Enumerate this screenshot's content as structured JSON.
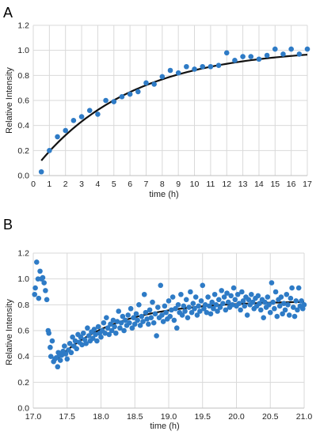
{
  "chart_data": [
    {
      "type": "scatter",
      "panel_label": "A",
      "xlabel": "time  (h)",
      "ylabel": "Relative Intensity",
      "xlim": [
        0,
        17
      ],
      "ylim": [
        0.0,
        1.2
      ],
      "x_ticks": [
        0,
        1,
        2,
        3,
        4,
        5,
        6,
        7,
        8,
        9,
        10,
        11,
        12,
        13,
        14,
        15,
        16,
        17
      ],
      "y_ticks": [
        0.0,
        0.2,
        0.4,
        0.6,
        0.8,
        1.0,
        1.2
      ],
      "x_tick_labels": [
        "0",
        "1",
        "2",
        "3",
        "4",
        "5",
        "6",
        "7",
        "8",
        "9",
        "10",
        "11",
        "12",
        "13",
        "14",
        "15",
        "16",
        "17"
      ],
      "y_tick_labels": [
        "0.0",
        "0.2",
        "0.4",
        "0.6",
        "0.8",
        "1.0",
        "1.2"
      ],
      "grid": true,
      "point_color": "#2e7bc6",
      "fit_color": "#111111",
      "points": [
        [
          0.5,
          0.03
        ],
        [
          1.0,
          0.2
        ],
        [
          1.5,
          0.31
        ],
        [
          2.0,
          0.36
        ],
        [
          2.5,
          0.44
        ],
        [
          3.0,
          0.47
        ],
        [
          3.5,
          0.52
        ],
        [
          4.0,
          0.49
        ],
        [
          4.5,
          0.6
        ],
        [
          5.0,
          0.59
        ],
        [
          5.5,
          0.63
        ],
        [
          6.0,
          0.65
        ],
        [
          6.5,
          0.67
        ],
        [
          7.0,
          0.74
        ],
        [
          7.5,
          0.73
        ],
        [
          8.0,
          0.79
        ],
        [
          8.5,
          0.84
        ],
        [
          9.0,
          0.82
        ],
        [
          9.5,
          0.87
        ],
        [
          10.0,
          0.85
        ],
        [
          10.5,
          0.87
        ],
        [
          11.0,
          0.87
        ],
        [
          11.5,
          0.88
        ],
        [
          12.0,
          0.98
        ],
        [
          12.5,
          0.92
        ],
        [
          13.0,
          0.95
        ],
        [
          13.5,
          0.95
        ],
        [
          14.0,
          0.93
        ],
        [
          14.5,
          0.96
        ],
        [
          15.0,
          1.01
        ],
        [
          15.5,
          0.97
        ],
        [
          16.0,
          1.01
        ],
        [
          16.5,
          0.97
        ],
        [
          17.0,
          1.01
        ]
      ],
      "fit": {
        "model": "exponential_rise",
        "t0": 0.5,
        "y0": 0.12,
        "ymax": 1.02,
        "k": 0.17
      }
    },
    {
      "type": "scatter",
      "panel_label": "B",
      "xlabel": "time (h)",
      "ylabel": "Relative Intensity",
      "xlim": [
        17.0,
        21.0
      ],
      "ylim": [
        0.0,
        1.2
      ],
      "x_ticks": [
        17.0,
        17.5,
        18.0,
        18.5,
        19.0,
        19.5,
        20.0,
        20.5,
        21.0
      ],
      "y_ticks": [
        0.0,
        0.2,
        0.4,
        0.6,
        0.8,
        1.0,
        1.2
      ],
      "x_tick_labels": [
        "17.0",
        "17.5",
        "18.0",
        "18.5",
        "19.0",
        "19.5",
        "20.0",
        "20.5",
        "21.0"
      ],
      "y_tick_labels": [
        "0.0",
        "0.2",
        "0.4",
        "0.6",
        "0.8",
        "1.0",
        "1.2"
      ],
      "grid": true,
      "point_color": "#2e7bc6",
      "fit_color": "#111111",
      "points": [
        [
          17.02,
          0.88
        ],
        [
          17.03,
          0.93
        ],
        [
          17.05,
          1.13
        ],
        [
          17.07,
          1.0
        ],
        [
          17.08,
          0.85
        ],
        [
          17.1,
          1.06
        ],
        [
          17.12,
          1.0
        ],
        [
          17.14,
          1.01
        ],
        [
          17.16,
          0.97
        ],
        [
          17.18,
          0.91
        ],
        [
          17.2,
          0.84
        ],
        [
          17.22,
          0.6
        ],
        [
          17.23,
          0.58
        ],
        [
          17.25,
          0.47
        ],
        [
          17.26,
          0.4
        ],
        [
          17.28,
          0.52
        ],
        [
          17.3,
          0.36
        ],
        [
          17.32,
          0.38
        ],
        [
          17.34,
          0.39
        ],
        [
          17.36,
          0.32
        ],
        [
          17.37,
          0.43
        ],
        [
          17.39,
          0.41
        ],
        [
          17.4,
          0.37
        ],
        [
          17.42,
          0.41
        ],
        [
          17.44,
          0.44
        ],
        [
          17.46,
          0.48
        ],
        [
          17.48,
          0.42
        ],
        [
          17.5,
          0.38
        ],
        [
          17.52,
          0.45
        ],
        [
          17.54,
          0.5
        ],
        [
          17.56,
          0.43
        ],
        [
          17.58,
          0.55
        ],
        [
          17.6,
          0.48
        ],
        [
          17.62,
          0.52
        ],
        [
          17.64,
          0.46
        ],
        [
          17.66,
          0.57
        ],
        [
          17.68,
          0.51
        ],
        [
          17.7,
          0.55
        ],
        [
          17.72,
          0.49
        ],
        [
          17.74,
          0.58
        ],
        [
          17.76,
          0.53
        ],
        [
          17.78,
          0.5
        ],
        [
          17.8,
          0.62
        ],
        [
          17.82,
          0.56
        ],
        [
          17.84,
          0.52
        ],
        [
          17.86,
          0.59
        ],
        [
          17.88,
          0.54
        ],
        [
          17.9,
          0.61
        ],
        [
          17.92,
          0.57
        ],
        [
          17.94,
          0.52
        ],
        [
          17.96,
          0.63
        ],
        [
          17.98,
          0.58
        ],
        [
          18.0,
          0.55
        ],
        [
          18.02,
          0.6
        ],
        [
          18.04,
          0.66
        ],
        [
          18.06,
          0.58
        ],
        [
          18.08,
          0.7
        ],
        [
          18.1,
          0.62
        ],
        [
          18.12,
          0.57
        ],
        [
          18.14,
          0.65
        ],
        [
          18.16,
          0.6
        ],
        [
          18.18,
          0.68
        ],
        [
          18.2,
          0.63
        ],
        [
          18.22,
          0.58
        ],
        [
          18.24,
          0.67
        ],
        [
          18.26,
          0.75
        ],
        [
          18.28,
          0.62
        ],
        [
          18.3,
          0.66
        ],
        [
          18.32,
          0.71
        ],
        [
          18.34,
          0.6
        ],
        [
          18.36,
          0.68
        ],
        [
          18.38,
          0.64
        ],
        [
          18.4,
          0.72
        ],
        [
          18.42,
          0.66
        ],
        [
          18.44,
          0.77
        ],
        [
          18.46,
          0.62
        ],
        [
          18.48,
          0.7
        ],
        [
          18.5,
          0.65
        ],
        [
          18.52,
          0.73
        ],
        [
          18.54,
          0.68
        ],
        [
          18.56,
          0.8
        ],
        [
          18.58,
          0.64
        ],
        [
          18.6,
          0.71
        ],
        [
          18.62,
          0.67
        ],
        [
          18.64,
          0.88
        ],
        [
          18.66,
          0.74
        ],
        [
          18.68,
          0.69
        ],
        [
          18.7,
          0.65
        ],
        [
          18.72,
          0.76
        ],
        [
          18.74,
          0.7
        ],
        [
          18.76,
          0.82
        ],
        [
          18.78,
          0.66
        ],
        [
          18.8,
          0.73
        ],
        [
          18.82,
          0.56
        ],
        [
          18.84,
          0.78
        ],
        [
          18.86,
          0.7
        ],
        [
          18.88,
          0.95
        ],
        [
          18.9,
          0.72
        ],
        [
          18.92,
          0.67
        ],
        [
          18.94,
          0.79
        ],
        [
          18.96,
          0.74
        ],
        [
          18.98,
          0.69
        ],
        [
          19.0,
          0.83
        ],
        [
          19.02,
          0.71
        ],
        [
          19.04,
          0.76
        ],
        [
          19.06,
          0.86
        ],
        [
          19.08,
          0.68
        ],
        [
          19.1,
          0.77
        ],
        [
          19.12,
          0.62
        ],
        [
          19.14,
          0.8
        ],
        [
          19.16,
          0.74
        ],
        [
          19.18,
          0.88
        ],
        [
          19.2,
          0.72
        ],
        [
          19.22,
          0.79
        ],
        [
          19.24,
          0.75
        ],
        [
          19.26,
          0.84
        ],
        [
          19.28,
          0.7
        ],
        [
          19.3,
          0.78
        ],
        [
          19.32,
          0.9
        ],
        [
          19.34,
          0.74
        ],
        [
          19.36,
          0.81
        ],
        [
          19.38,
          0.77
        ],
        [
          19.4,
          0.86
        ],
        [
          19.42,
          0.72
        ],
        [
          19.44,
          0.79
        ],
        [
          19.46,
          0.75
        ],
        [
          19.48,
          0.83
        ],
        [
          19.5,
          0.95
        ],
        [
          19.52,
          0.77
        ],
        [
          19.54,
          0.8
        ],
        [
          19.56,
          0.74
        ],
        [
          19.58,
          0.86
        ],
        [
          19.6,
          0.79
        ],
        [
          19.62,
          0.73
        ],
        [
          19.64,
          0.82
        ],
        [
          19.66,
          0.77
        ],
        [
          19.68,
          0.88
        ],
        [
          19.7,
          0.8
        ],
        [
          19.72,
          0.75
        ],
        [
          19.74,
          0.84
        ],
        [
          19.76,
          0.78
        ],
        [
          19.78,
          0.91
        ],
        [
          19.8,
          0.81
        ],
        [
          19.82,
          0.86
        ],
        [
          19.84,
          0.76
        ],
        [
          19.86,
          0.89
        ],
        [
          19.88,
          0.82
        ],
        [
          19.9,
          0.78
        ],
        [
          19.92,
          0.87
        ],
        [
          19.94,
          0.8
        ],
        [
          19.96,
          0.93
        ],
        [
          19.98,
          0.84
        ],
        [
          20.0,
          0.79
        ],
        [
          20.02,
          0.88
        ],
        [
          20.04,
          0.81
        ],
        [
          20.06,
          0.76
        ],
        [
          20.08,
          0.9
        ],
        [
          20.1,
          0.83
        ],
        [
          20.12,
          0.79
        ],
        [
          20.14,
          0.86
        ],
        [
          20.16,
          0.72
        ],
        [
          20.18,
          0.84
        ],
        [
          20.2,
          0.8
        ],
        [
          20.22,
          0.88
        ],
        [
          20.24,
          0.82
        ],
        [
          20.26,
          0.77
        ],
        [
          20.28,
          0.85
        ],
        [
          20.3,
          0.79
        ],
        [
          20.32,
          0.87
        ],
        [
          20.34,
          0.81
        ],
        [
          20.36,
          0.76
        ],
        [
          20.38,
          0.84
        ],
        [
          20.4,
          0.7
        ],
        [
          20.42,
          0.82
        ],
        [
          20.44,
          0.78
        ],
        [
          20.46,
          0.86
        ],
        [
          20.48,
          0.8
        ],
        [
          20.5,
          0.74
        ],
        [
          20.52,
          0.97
        ],
        [
          20.54,
          0.82
        ],
        [
          20.56,
          0.77
        ],
        [
          20.58,
          0.9
        ],
        [
          20.6,
          0.71
        ],
        [
          20.62,
          0.84
        ],
        [
          20.64,
          0.79
        ],
        [
          20.66,
          0.86
        ],
        [
          20.68,
          0.73
        ],
        [
          20.7,
          0.81
        ],
        [
          20.72,
          0.76
        ],
        [
          20.74,
          0.88
        ],
        [
          20.76,
          0.8
        ],
        [
          20.78,
          0.72
        ],
        [
          20.8,
          0.85
        ],
        [
          20.82,
          0.93
        ],
        [
          20.84,
          0.78
        ],
        [
          20.86,
          0.71
        ],
        [
          20.88,
          0.83
        ],
        [
          20.9,
          0.76
        ],
        [
          20.92,
          0.93
        ],
        [
          20.94,
          0.79
        ],
        [
          20.96,
          0.83
        ],
        [
          20.98,
          0.77
        ],
        [
          21.0,
          0.8
        ]
      ],
      "fit": {
        "model": "exponential_rise",
        "t0": 17.35,
        "y0": 0.38,
        "ymax": 0.83,
        "k": 1.1
      }
    }
  ]
}
